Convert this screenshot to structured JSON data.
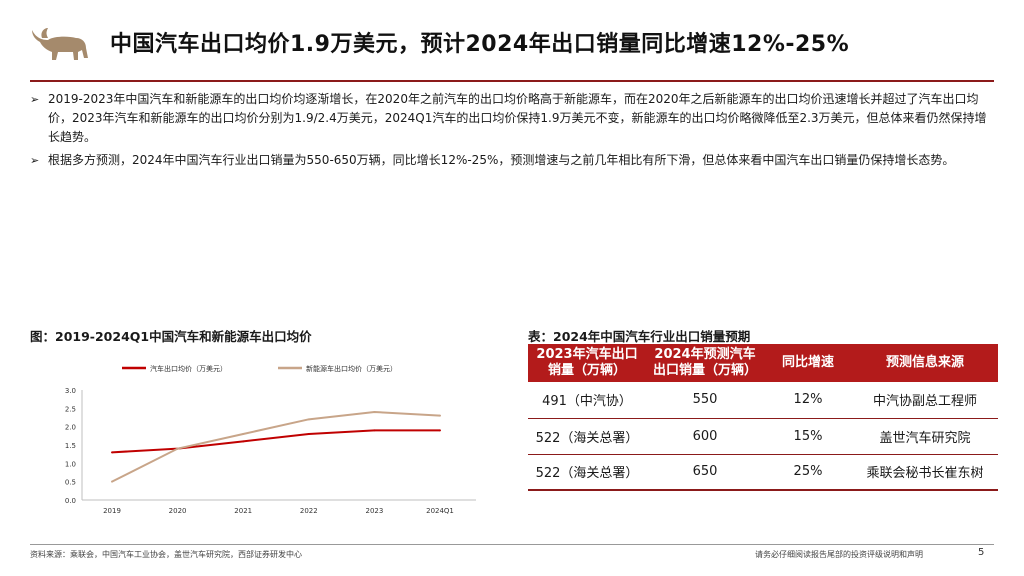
{
  "header": {
    "title": "中国汽车出口均价1.9万美元，预计2024年出口销量同比增速12%-25%"
  },
  "bullets": [
    "2019-2023年中国汽车和新能源车的出口均价均逐渐增长，在2020年之前汽车的出口均价略高于新能源车，而在2020年之后新能源车的出口均价迅速增长并超过了汽车出口均价，2023年汽车和新能源车的出口均价分别为1.9/2.4万美元，2024Q1汽车的出口均价保持1.9万美元不变，新能源车的出口均价略微降低至2.3万美元，但总体来看仍然保持增长趋势。",
    "根据多方预测，2024年中国汽车行业出口销量为550-650万辆，同比增长12%-25%，预测增速与之前几年相比有所下滑，但总体来看中国汽车出口销量仍保持增长态势。"
  ],
  "figure": {
    "caption": "图：2019-2024Q1中国汽车和新能源车出口均价"
  },
  "chart_data": {
    "type": "line",
    "categories": [
      "2019",
      "2020",
      "2021",
      "2022",
      "2023",
      "2024Q1"
    ],
    "series": [
      {
        "name": "汽车出口均价（万美元）",
        "values": [
          1.3,
          1.4,
          1.6,
          1.8,
          1.9,
          1.9
        ],
        "color": "#c00000"
      },
      {
        "name": "新能源车出口均价（万美元）",
        "values": [
          0.5,
          1.4,
          1.8,
          2.2,
          2.4,
          2.3
        ],
        "color": "#c8a589"
      }
    ],
    "yticks": [
      "0.0",
      "0.5",
      "1.0",
      "1.5",
      "2.0",
      "2.5",
      "3.0"
    ],
    "ylim": [
      0,
      3.0
    ],
    "grid": false,
    "legend": "top-left"
  },
  "table": {
    "caption": "表：2024年中国汽车行业出口销量预期",
    "headers": [
      "2023年汽车出口销量（万辆）",
      "2024年预测汽车出口销量（万辆）",
      "同比增速",
      "预测信息来源"
    ],
    "rows": [
      [
        "491（中汽协）",
        "550",
        "12%",
        "中汽协副总工程师"
      ],
      [
        "522（海关总署）",
        "600",
        "15%",
        "盖世汽车研究院"
      ],
      [
        "522（海关总署）",
        "650",
        "25%",
        "乘联会秘书长崔东树"
      ]
    ],
    "header_color": "#b31b1b"
  },
  "footer": {
    "source": "资料来源：乘联会，中国汽车工业协会，盖世汽车研究院，西部证券研发中心",
    "disclaimer": "请务必仔细阅读报告尾部的投资评级说明和声明",
    "page": "5"
  },
  "colors": {
    "accent": "#8b1a1a"
  },
  "icons": {
    "logo": "bull-icon"
  }
}
